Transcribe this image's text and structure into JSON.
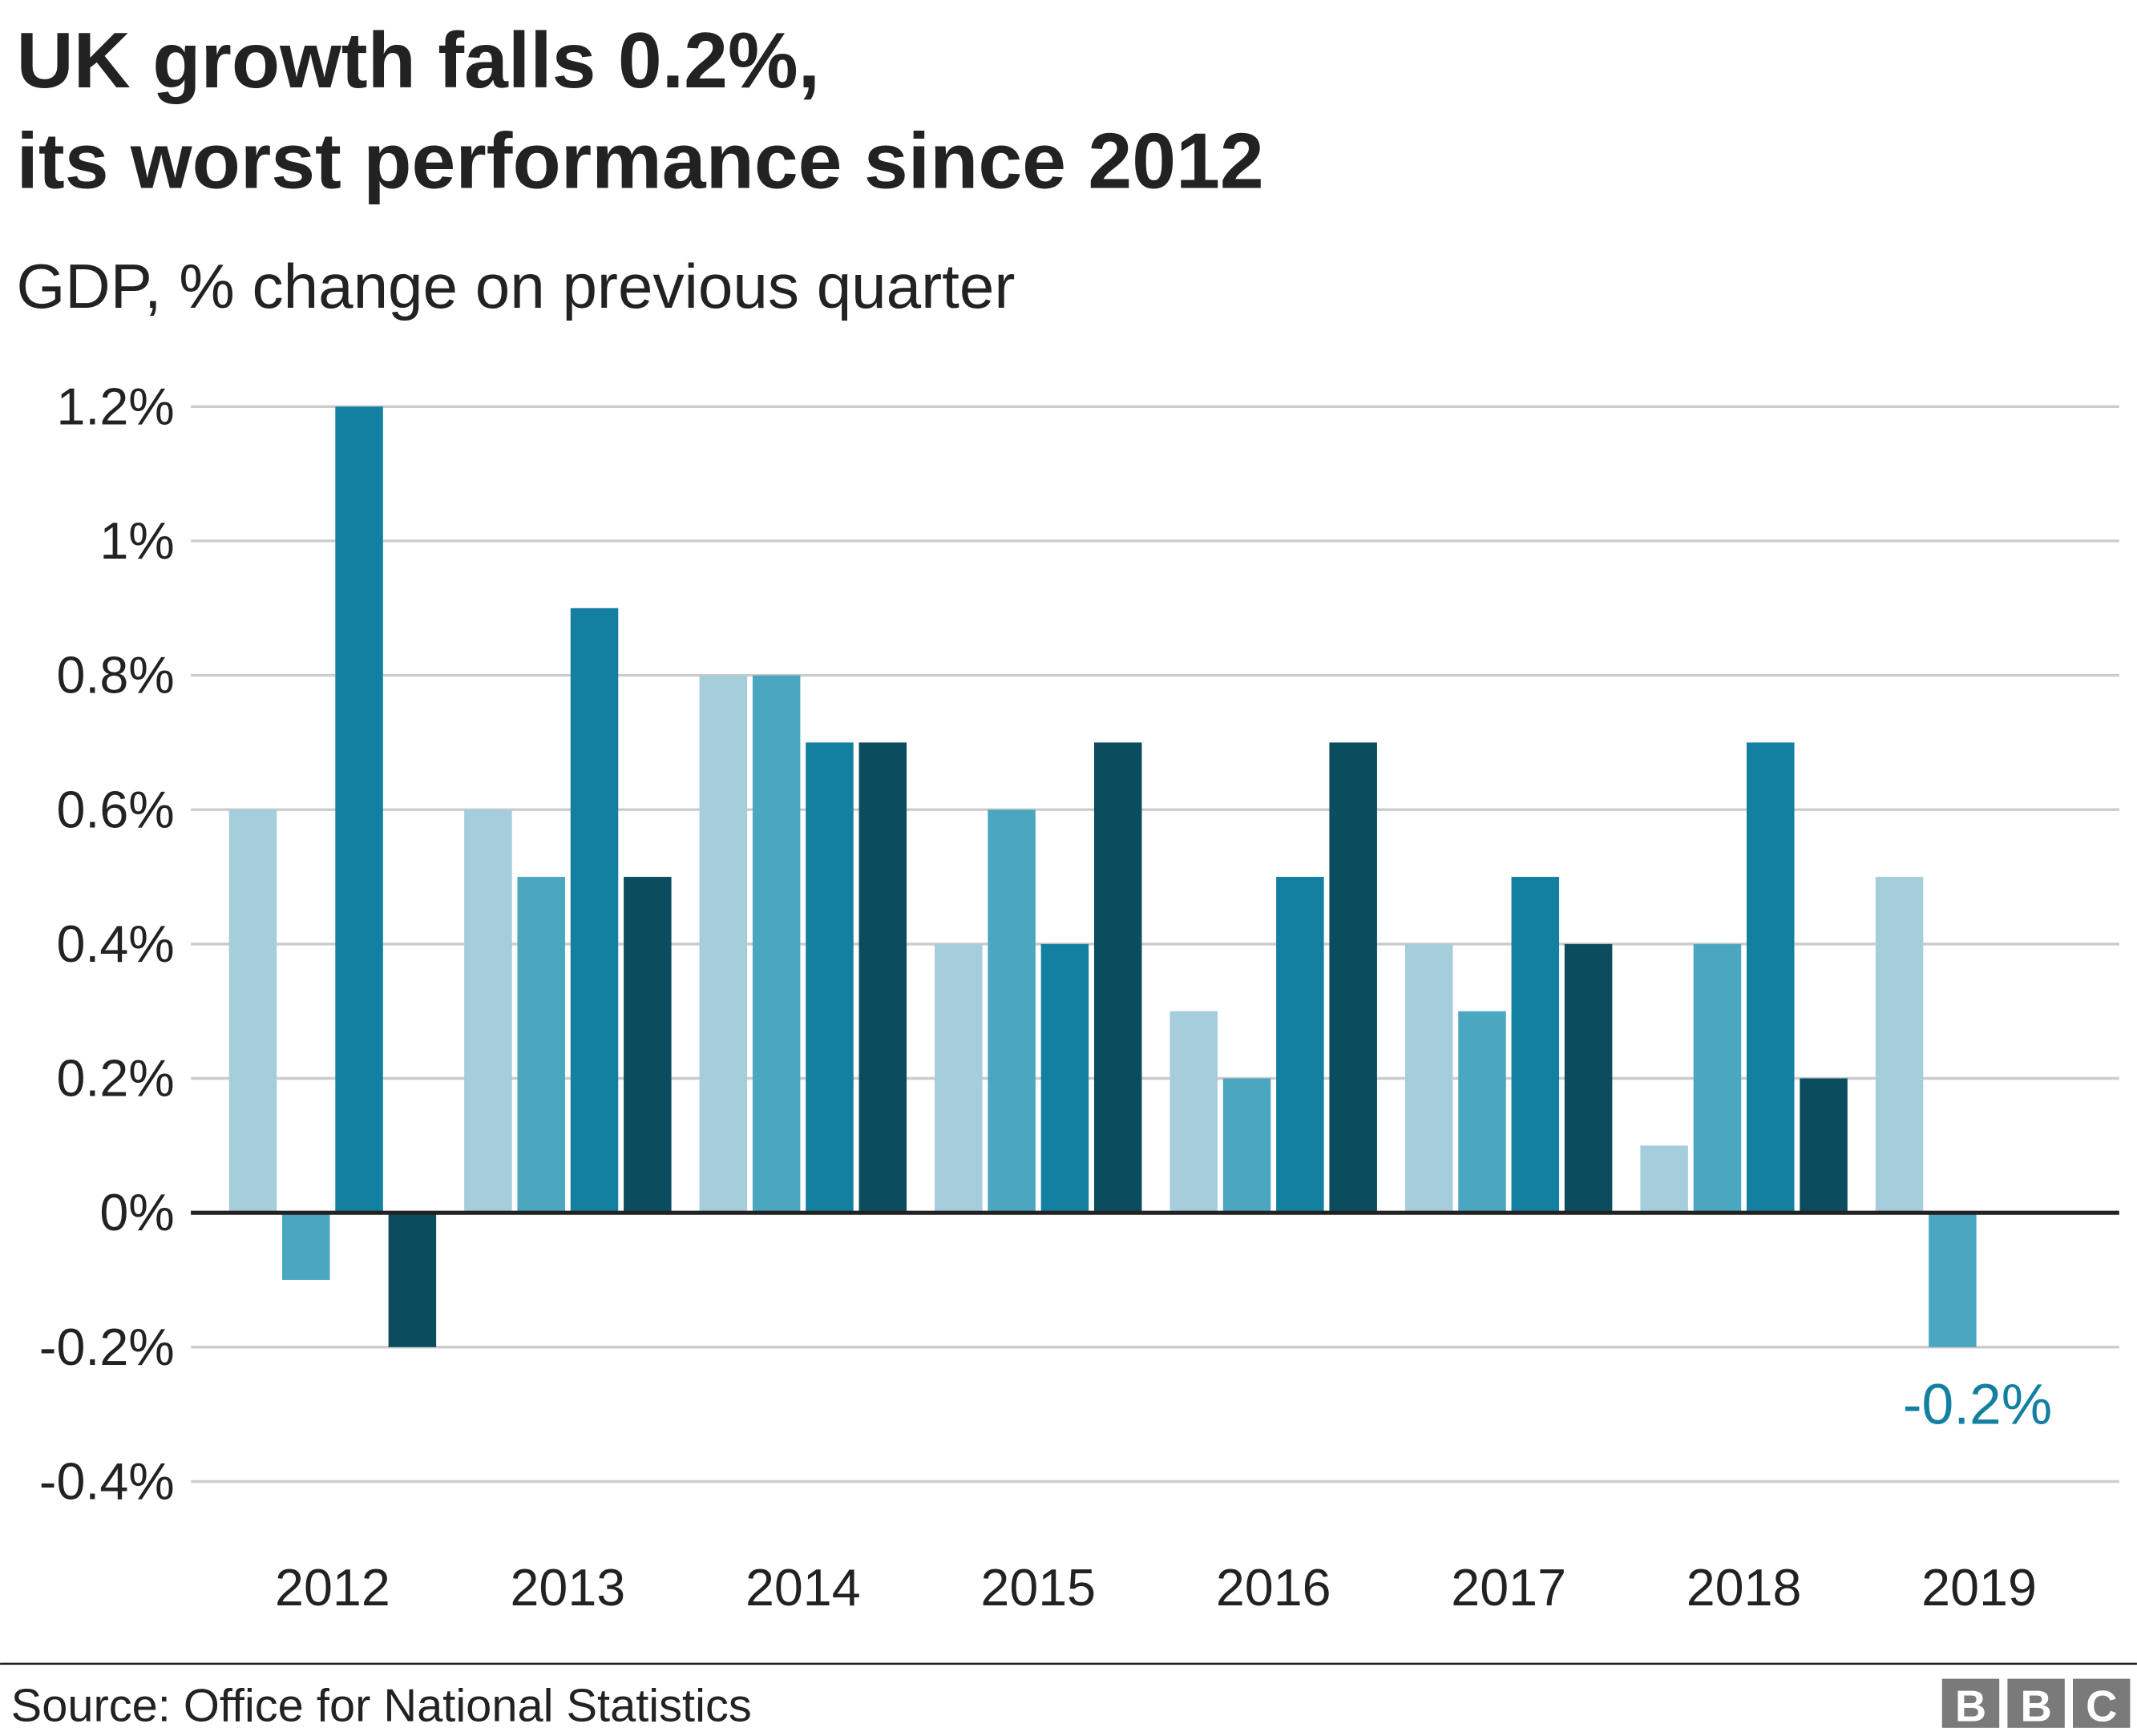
{
  "title_line1": "UK growth falls 0.2%,",
  "title_line2": "its worst performance since 2012",
  "subtitle": "GDP, % change on previous quarter",
  "source": "Source: Office for National Statistics",
  "logo": "BBC",
  "colors": {
    "q1": "#a5cddb",
    "q2": "#4ba7bf",
    "q3": "#1380a1",
    "q4": "#0b4c5f",
    "annotation": "#1380a1",
    "grid": "#cccccc",
    "zero_line": "#222222",
    "logo": "#7a7a7a"
  },
  "chart_data": {
    "type": "bar",
    "title": "UK growth falls 0.2%, its worst performance since 2012",
    "subtitle": "GDP, % change on previous quarter",
    "ylim": [
      -0.4,
      1.2
    ],
    "yticks": [
      1.2,
      1.0,
      0.8,
      0.6,
      0.4,
      0.2,
      0,
      -0.2,
      -0.4
    ],
    "ytick_labels": [
      "1.2%",
      "1%",
      "0.8%",
      "0.6%",
      "0.4%",
      "0.2%",
      "0%",
      "-0.2%",
      "-0.4%"
    ],
    "grid": true,
    "categories": [
      "2012",
      "2013",
      "2014",
      "2015",
      "2016",
      "2017",
      "2018",
      "2019"
    ],
    "quarterly_values": [
      [
        0.6,
        -0.1,
        1.2,
        -0.2
      ],
      [
        0.6,
        0.5,
        0.9,
        0.5
      ],
      [
        0.8,
        0.8,
        0.7,
        0.7
      ],
      [
        0.4,
        0.6,
        0.4,
        0.7
      ],
      [
        0.3,
        0.2,
        0.5,
        0.7
      ],
      [
        0.4,
        0.3,
        0.5,
        0.4
      ],
      [
        0.1,
        0.4,
        0.7,
        0.2
      ],
      [
        0.5,
        -0.2
      ]
    ],
    "annotation": {
      "text": "-0.2%",
      "category": "2019",
      "quarter": 2,
      "value": -0.2
    }
  }
}
